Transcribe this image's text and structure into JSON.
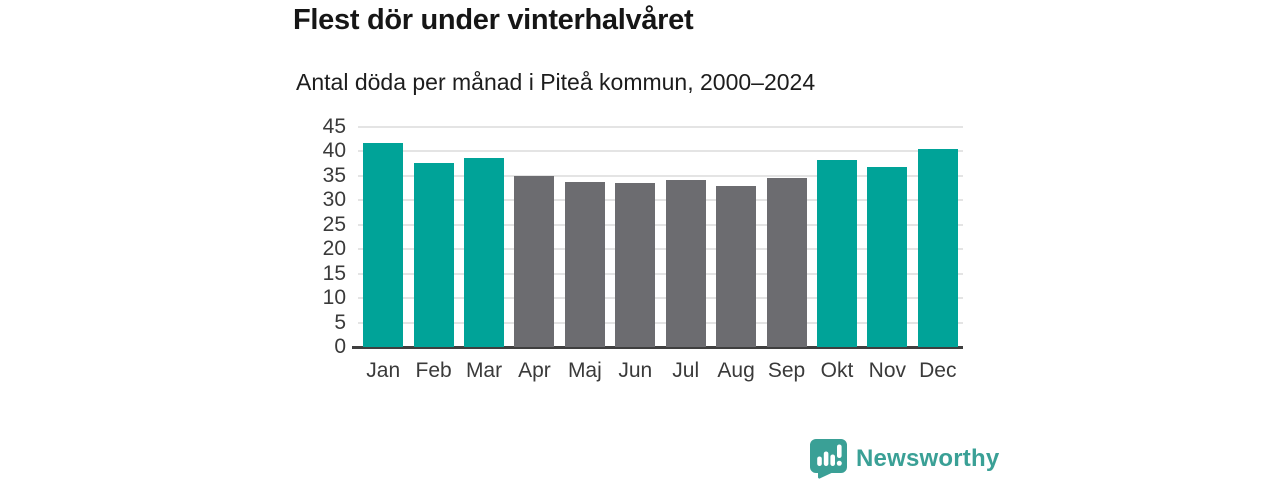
{
  "header": {
    "title": "Flest dör under vinterhalvåret",
    "subtitle": "Antal döda per månad i Piteå kommun, 2000–2024"
  },
  "chart_data": {
    "type": "bar",
    "title": "Flest dör under vinterhalvåret",
    "subtitle": "Antal döda per månad i Piteå kommun, 2000–2024",
    "categories": [
      "Jan",
      "Feb",
      "Mar",
      "Apr",
      "Maj",
      "Jun",
      "Jul",
      "Aug",
      "Sep",
      "Okt",
      "Nov",
      "Dec"
    ],
    "values": [
      41.8,
      37.6,
      38.7,
      35.0,
      33.8,
      33.5,
      34.1,
      33.0,
      34.5,
      38.2,
      36.9,
      40.5
    ],
    "highlight_winter_months": [
      true,
      true,
      true,
      false,
      false,
      false,
      false,
      false,
      false,
      true,
      true,
      true
    ],
    "colors": {
      "winter": "#00a398",
      "other": "#6c6c70"
    },
    "xlabel": "",
    "ylabel": "",
    "ylim": [
      0,
      45
    ],
    "yticks": [
      0,
      5,
      10,
      15,
      20,
      25,
      30,
      35,
      40,
      45
    ],
    "grid": true,
    "legend": false
  },
  "branding": {
    "name": "Newsworthy",
    "logo_icon": "bar-chart-speech-bubble",
    "color": "#3aa096"
  },
  "colors": {
    "background": "#ffffff",
    "title_text": "#161616",
    "axis_labels": "#3a3a3a",
    "gridline": "#e4e4e4",
    "axis_line": "#3f3f3f"
  }
}
